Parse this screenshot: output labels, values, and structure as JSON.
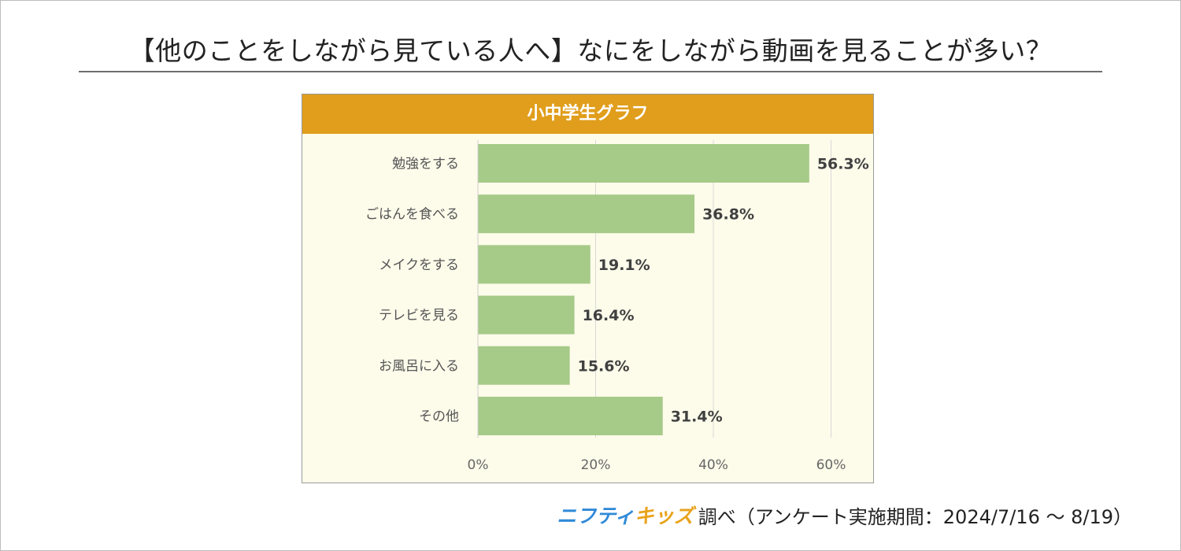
{
  "title": "【他のことをしながら見ている人へ】なにをしながら動画を見ることが多い？",
  "chart_header": "小中学生グラフ",
  "colors": {
    "header": "#e09e1c",
    "bar": "#a6ca88",
    "background": "#fdfbea",
    "grid": "#d8d8d8"
  },
  "chart_data": {
    "type": "bar",
    "orientation": "horizontal",
    "title": "小中学生グラフ",
    "categories": [
      "勉強をする",
      "ごはんを食べる",
      "メイクをする",
      "テレビを見る",
      "お風呂に入る",
      "その他"
    ],
    "values": [
      56.3,
      36.8,
      19.1,
      16.4,
      15.6,
      31.4
    ],
    "value_labels": [
      "56.3%",
      "36.8%",
      "19.1%",
      "16.4%",
      "15.6%",
      "31.4%"
    ],
    "x_ticks": [
      0,
      20,
      40,
      60
    ],
    "x_tick_labels": [
      "0%",
      "20%",
      "40%",
      "60%"
    ],
    "xlim": [
      0,
      60
    ],
    "xlabel": "",
    "ylabel": "",
    "grid": true
  },
  "footer": {
    "logo_part1": "ニフティ",
    "logo_part2": "キッズ",
    "text": "調べ（アンケート実施期間：2024/7/16 ～ 8/19）"
  }
}
